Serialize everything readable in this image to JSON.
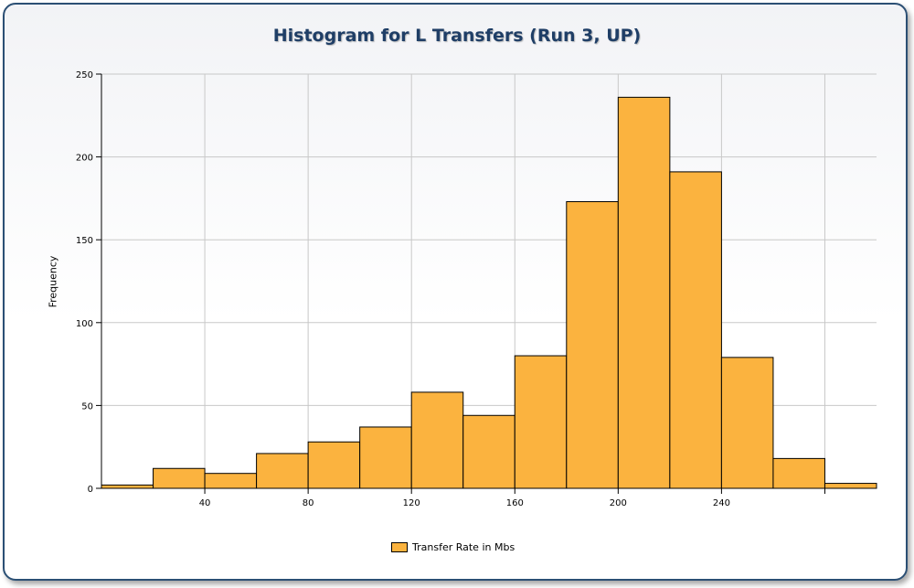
{
  "chart_data": {
    "type": "bar",
    "title": "Histogram for L Transfers (Run 3, UP)",
    "xlabel": "",
    "ylabel": "Frequency",
    "xlim": [
      0,
      300
    ],
    "ylim": [
      0,
      250
    ],
    "xticks": [
      40,
      80,
      120,
      160,
      200,
      240
    ],
    "yticks": [
      0,
      50,
      100,
      150,
      200,
      250
    ],
    "grid": true,
    "legend_position": "bottom-center",
    "bar_color": "#fbb33f",
    "series": [
      {
        "name": "Transfer Rate in Mbs",
        "bins": [
          {
            "x0": 0,
            "x1": 20,
            "value": 2
          },
          {
            "x0": 20,
            "x1": 40,
            "value": 12
          },
          {
            "x0": 40,
            "x1": 60,
            "value": 9
          },
          {
            "x0": 60,
            "x1": 80,
            "value": 21
          },
          {
            "x0": 80,
            "x1": 100,
            "value": 28
          },
          {
            "x0": 100,
            "x1": 120,
            "value": 37
          },
          {
            "x0": 120,
            "x1": 140,
            "value": 58
          },
          {
            "x0": 140,
            "x1": 160,
            "value": 44
          },
          {
            "x0": 160,
            "x1": 180,
            "value": 80
          },
          {
            "x0": 180,
            "x1": 200,
            "value": 173
          },
          {
            "x0": 200,
            "x1": 220,
            "value": 236
          },
          {
            "x0": 220,
            "x1": 240,
            "value": 191
          },
          {
            "x0": 240,
            "x1": 260,
            "value": 79
          },
          {
            "x0": 260,
            "x1": 280,
            "value": 18
          },
          {
            "x0": 280,
            "x1": 300,
            "value": 3
          }
        ]
      }
    ]
  }
}
